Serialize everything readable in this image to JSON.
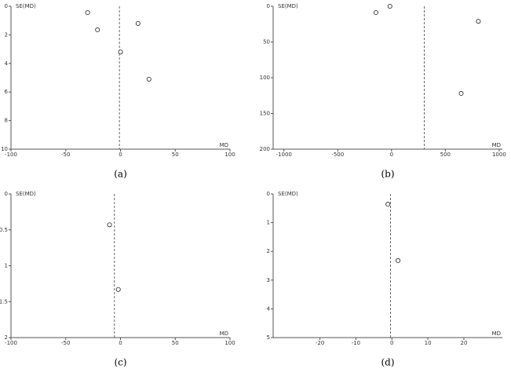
{
  "chart_data": [
    {
      "type": "scatter",
      "caption": "(a)",
      "x_label": "MD",
      "y_label": "SE(MD)",
      "x": [
        -30,
        -21,
        16,
        0,
        26
      ],
      "values": [
        0.44,
        1.65,
        1.2,
        3.2,
        5.1
      ],
      "reference_line": -1,
      "y_inverted": true,
      "xlim": [
        -100,
        100
      ],
      "xticks": [
        -100,
        -50,
        0,
        50,
        100
      ],
      "ylim": [
        0,
        10
      ],
      "yticks": [
        0,
        2,
        4,
        6,
        8,
        10
      ]
    },
    {
      "type": "scatter",
      "caption": "(b)",
      "x_label": "MD",
      "y_label": "SE(MD)",
      "x": [
        -145,
        -15,
        807,
        647
      ],
      "values": [
        8.8,
        0,
        21,
        122
      ],
      "reference_line": 305,
      "y_inverted": true,
      "xlim": [
        -1100,
        1030
      ],
      "xticks": [
        -1000,
        -500,
        0,
        500,
        1000
      ],
      "ylim": [
        0,
        200
      ],
      "yticks": [
        0,
        50,
        100,
        150,
        200
      ]
    },
    {
      "type": "scatter",
      "caption": "(c)",
      "x_label": "MD",
      "y_label": "SE(MD)",
      "x": [
        -10,
        -2
      ],
      "values": [
        0.43,
        1.33
      ],
      "reference_line": -5.5,
      "y_inverted": true,
      "xlim": [
        -100,
        100
      ],
      "xticks": [
        -100,
        -50,
        0,
        50,
        100
      ],
      "ylim": [
        0,
        2
      ],
      "yticks": [
        0,
        0.5,
        1,
        1.5,
        2
      ]
    },
    {
      "type": "scatter",
      "caption": "(d)",
      "x_label": "MD",
      "y_label": "SE(MD)",
      "x": [
        -1.1,
        1.7
      ],
      "values": [
        0.36,
        2.32
      ],
      "reference_line": -0.4,
      "y_inverted": true,
      "xlim": [
        -33,
        30.7
      ],
      "xticks": [
        -20,
        -10,
        0,
        10,
        20
      ],
      "ylim": [
        0,
        5
      ],
      "yticks": [
        0,
        1,
        2,
        3,
        4,
        5
      ]
    }
  ]
}
